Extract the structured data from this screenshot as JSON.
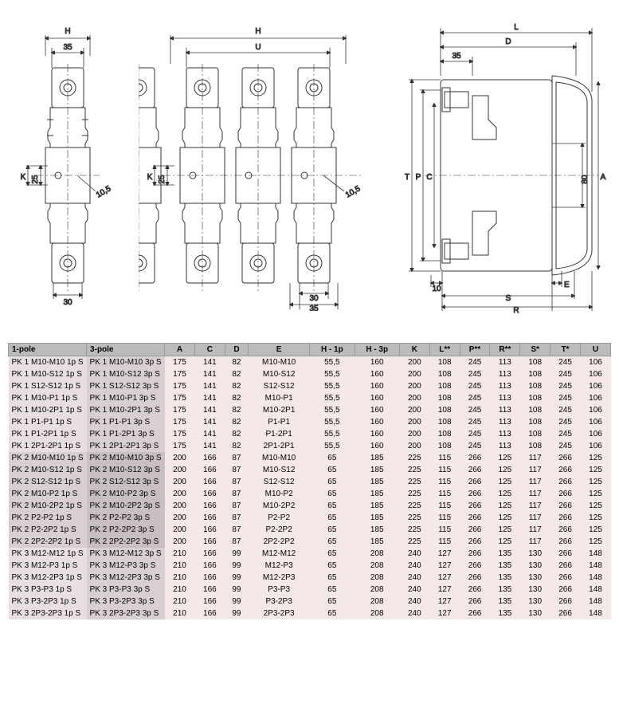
{
  "diagrams": {
    "view1": {
      "top_label": "H",
      "top_dim": "35",
      "left_label": "K",
      "left_dim": "25",
      "diag_dim": "10,5",
      "bottom_dim": "30"
    },
    "view2": {
      "top_label_h": "H",
      "top_label_u": "U",
      "left_label": "K",
      "left_dim": "25",
      "diag_dim": "10,5",
      "bottom_dim1": "30",
      "bottom_dim2": "35"
    },
    "view3": {
      "top_label_l": "L",
      "top_label_d": "D",
      "top_dim": "35",
      "left_labels": [
        "T",
        "P",
        "C"
      ],
      "right_labels": [
        "A",
        "80"
      ],
      "bottom_dim": "10",
      "bottom_label_e": "E",
      "bottom_label_s": "S",
      "bottom_label_r": "R"
    }
  },
  "table": {
    "headers": [
      "1-pole",
      "3-pole",
      "A",
      "C",
      "D",
      "E",
      "H - 1p",
      "H - 3p",
      "K",
      "L**",
      "P**",
      "R**",
      "S*",
      "T*",
      "U"
    ],
    "groups": [
      {
        "css": "group1",
        "rows": [
          [
            "PK 1 M10-M10 1p S",
            "PK 1 M10-M10 3p S",
            "175",
            "141",
            "82",
            "M10-M10",
            "55,5",
            "160",
            "200",
            "108",
            "245",
            "113",
            "108",
            "245",
            "106"
          ],
          [
            "PK 1 M10-S12 1p S",
            "PK 1 M10-S12 3p S",
            "175",
            "141",
            "82",
            "M10-S12",
            "55,5",
            "160",
            "200",
            "108",
            "245",
            "113",
            "108",
            "245",
            "106"
          ],
          [
            "PK 1 S12-S12 1p S",
            "PK 1 S12-S12 3p S",
            "175",
            "141",
            "82",
            "S12-S12",
            "55,5",
            "160",
            "200",
            "108",
            "245",
            "113",
            "108",
            "245",
            "106"
          ],
          [
            "PK 1 M10-P1 1p S",
            "PK 1 M10-P1 3p S",
            "175",
            "141",
            "82",
            "M10-P1",
            "55,5",
            "160",
            "200",
            "108",
            "245",
            "113",
            "108",
            "245",
            "106"
          ],
          [
            "PK 1 M10-2P1 1p S",
            "PK 1 M10-2P1 3p S",
            "175",
            "141",
            "82",
            "M10-2P1",
            "55,5",
            "160",
            "200",
            "108",
            "245",
            "113",
            "108",
            "245",
            "106"
          ],
          [
            "PK 1 P1-P1 1p S",
            "PK 1 P1-P1 3p S",
            "175",
            "141",
            "82",
            "P1-P1",
            "55,5",
            "160",
            "200",
            "108",
            "245",
            "113",
            "108",
            "245",
            "106"
          ],
          [
            "PK 1 P1-2P1 1p S",
            "PK 1 P1-2P1 3p S",
            "175",
            "141",
            "82",
            "P1-2P1",
            "55,5",
            "160",
            "200",
            "108",
            "245",
            "113",
            "108",
            "245",
            "106"
          ],
          [
            "PK 1 2P1-2P1 1p S",
            "PK 1 2P1-2P1 3p S",
            "175",
            "141",
            "82",
            "2P1-2P1",
            "55,5",
            "160",
            "200",
            "108",
            "245",
            "113",
            "108",
            "245",
            "106"
          ]
        ]
      },
      {
        "css": "group2",
        "rows": [
          [
            "PK 2 M10-M10 1p S",
            "PK 2 M10-M10 3p S",
            "200",
            "166",
            "87",
            "M10-M10",
            "65",
            "185",
            "225",
            "115",
            "266",
            "125",
            "117",
            "266",
            "125"
          ],
          [
            "PK 2 M10-S12 1p S",
            "PK 2 M10-S12 3p S",
            "200",
            "166",
            "87",
            "M10-S12",
            "65",
            "185",
            "225",
            "115",
            "266",
            "125",
            "117",
            "266",
            "125"
          ],
          [
            "PK 2 S12-S12 1p S",
            "PK 2 S12-S12 3p S",
            "200",
            "166",
            "87",
            "S12-S12",
            "65",
            "185",
            "225",
            "115",
            "266",
            "125",
            "117",
            "266",
            "125"
          ],
          [
            "PK 2 M10-P2 1p S",
            "PK 2 M10-P2 3p S",
            "200",
            "166",
            "87",
            "M10-P2",
            "65",
            "185",
            "225",
            "115",
            "266",
            "125",
            "117",
            "266",
            "125"
          ],
          [
            "PK 2 M10-2P2 1p S",
            "PK 2 M10-2P2 3p S",
            "200",
            "166",
            "87",
            "M10-2P2",
            "65",
            "185",
            "225",
            "115",
            "266",
            "125",
            "117",
            "266",
            "125"
          ],
          [
            "PK 2 P2-P2 1p S",
            "PK 2 P2-P2 3p S",
            "200",
            "166",
            "87",
            "P2-P2",
            "65",
            "185",
            "225",
            "115",
            "266",
            "125",
            "117",
            "266",
            "125"
          ],
          [
            "PK 2 P2-2P2 1p S",
            "PK 2 P2-2P2 3p S",
            "200",
            "166",
            "87",
            "P2-2P2",
            "65",
            "185",
            "225",
            "115",
            "266",
            "125",
            "117",
            "266",
            "125"
          ],
          [
            "PK 2 2P2-2P2 1p S",
            "PK 2 2P2-2P2 3p S",
            "200",
            "166",
            "87",
            "2P2-2P2",
            "65",
            "185",
            "225",
            "115",
            "266",
            "125",
            "117",
            "266",
            "125"
          ]
        ]
      },
      {
        "css": "group3",
        "rows": [
          [
            "PK 3 M12-M12 1p S",
            "PK 3 M12-M12 3p S",
            "210",
            "166",
            "99",
            "M12-M12",
            "65",
            "208",
            "240",
            "127",
            "266",
            "135",
            "130",
            "266",
            "148"
          ],
          [
            "PK 3 M12-P3 1p S",
            "PK 3 M12-P3 3p S",
            "210",
            "166",
            "99",
            "M12-P3",
            "65",
            "208",
            "240",
            "127",
            "266",
            "135",
            "130",
            "266",
            "148"
          ],
          [
            "PK 3 M12-2P3 1p S",
            "PK 3 M12-2P3 3p S",
            "210",
            "166",
            "99",
            "M12-2P3",
            "65",
            "208",
            "240",
            "127",
            "266",
            "135",
            "130",
            "266",
            "148"
          ],
          [
            "PK 3 P3-P3 1p S",
            "PK 3 P3-P3 3p S",
            "210",
            "166",
            "99",
            "P3-P3",
            "65",
            "208",
            "240",
            "127",
            "266",
            "135",
            "130",
            "266",
            "148"
          ],
          [
            "PK 3 P3-2P3 1p S",
            "PK 3 P3-2P3 3p S",
            "210",
            "166",
            "99",
            "P3-2P3",
            "65",
            "208",
            "240",
            "127",
            "266",
            "135",
            "130",
            "266",
            "148"
          ],
          [
            "PK 3 2P3-2P3 1p S",
            "PK 3 2P3-2P3 3p S",
            "210",
            "166",
            "99",
            "2P3-2P3",
            "65",
            "208",
            "240",
            "127",
            "266",
            "135",
            "130",
            "266",
            "148"
          ]
        ]
      }
    ]
  }
}
